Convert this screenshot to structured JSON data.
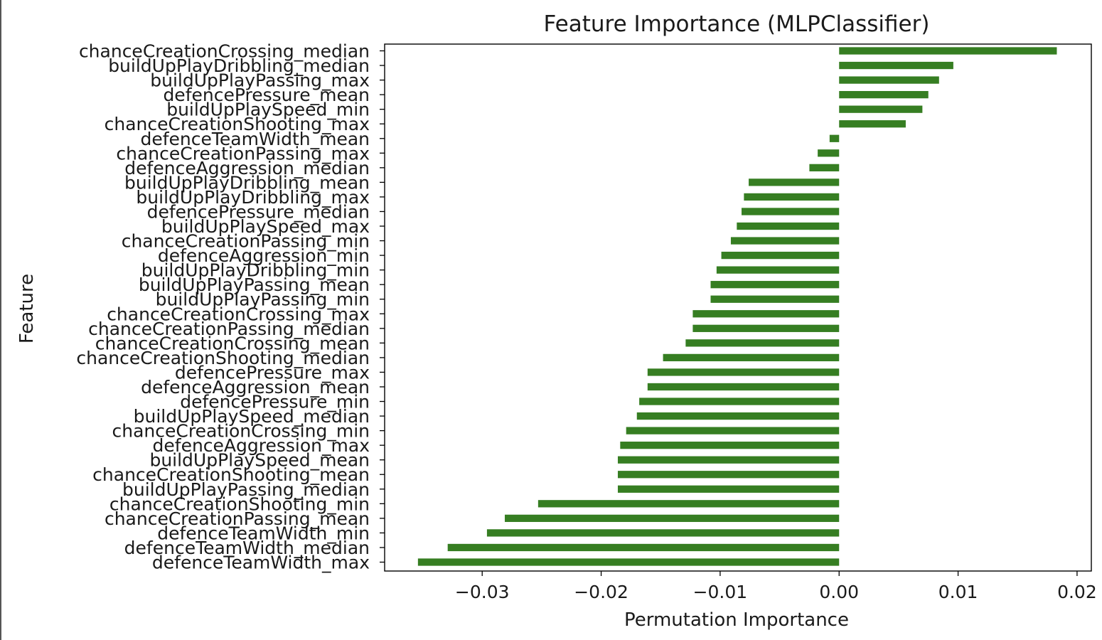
{
  "chart_data": {
    "type": "bar",
    "orientation": "horizontal",
    "title": "Feature Importance (MLPClassifier)",
    "xlabel": "Permutation Importance",
    "ylabel": "Feature",
    "xlim": [
      -0.0382,
      0.0212
    ],
    "xticks": [
      -0.03,
      -0.02,
      -0.01,
      0.0,
      0.01,
      0.02
    ],
    "xtick_labels": [
      "−0.03",
      "−0.02",
      "−0.01",
      "0.00",
      "0.01",
      "0.02"
    ],
    "bar_color": "#367e22",
    "grid": false,
    "categories": [
      "chanceCreationCrossing_median",
      "buildUpPlayDribbling_median",
      "buildUpPlayPassing_max",
      "defencePressure_mean",
      "buildUpPlaySpeed_min",
      "chanceCreationShooting_max",
      "defenceTeamWidth_mean",
      "chanceCreationPassing_max",
      "defenceAggression_median",
      "buildUpPlayDribbling_mean",
      "buildUpPlayDribbling_max",
      "defencePressure_median",
      "buildUpPlaySpeed_max",
      "chanceCreationPassing_min",
      "defenceAggression_min",
      "buildUpPlayDribbling_min",
      "buildUpPlayPassing_mean",
      "buildUpPlayPassing_min",
      "chanceCreationCrossing_max",
      "chanceCreationPassing_median",
      "chanceCreationCrossing_mean",
      "chanceCreationShooting_median",
      "defencePressure_max",
      "defenceAggression_mean",
      "defencePressure_min",
      "buildUpPlaySpeed_median",
      "chanceCreationCrossing_min",
      "defenceAggression_max",
      "buildUpPlaySpeed_mean",
      "chanceCreationShooting_mean",
      "buildUpPlayPassing_median",
      "chanceCreationShooting_min",
      "chanceCreationPassing_mean",
      "defenceTeamWidth_min",
      "defenceTeamWidth_median",
      "defenceTeamWidth_max"
    ],
    "values": [
      0.0183,
      0.0096,
      0.0084,
      0.0075,
      0.007,
      0.0056,
      -0.0008,
      -0.0018,
      -0.0025,
      -0.0076,
      -0.008,
      -0.0082,
      -0.0086,
      -0.0091,
      -0.0099,
      -0.0103,
      -0.0108,
      -0.0108,
      -0.0123,
      -0.0123,
      -0.0129,
      -0.0148,
      -0.0161,
      -0.0161,
      -0.0168,
      -0.017,
      -0.0179,
      -0.0184,
      -0.0186,
      -0.0186,
      -0.0186,
      -0.0253,
      -0.0281,
      -0.0296,
      -0.0329,
      -0.0354
    ]
  }
}
